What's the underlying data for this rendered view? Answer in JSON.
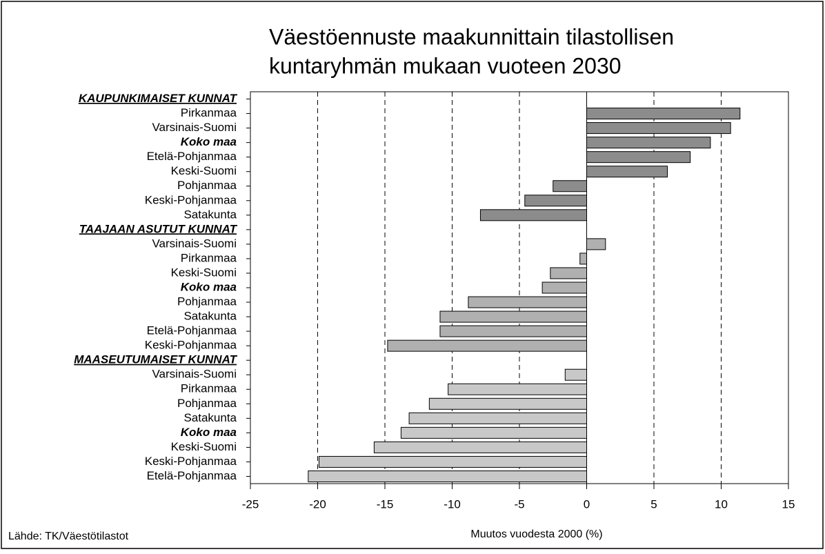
{
  "chart_data": {
    "type": "bar",
    "orientation": "horizontal",
    "title": [
      "Väestöennuste maakunnittain tilastollisen",
      "kuntaryhmän mukaan vuoteen 2030"
    ],
    "x_label": "Muutos vuodesta 2000 (%)",
    "source": "Lähde: TK/Väestötilastot",
    "categories": [
      "KAUPUNKIMAISET KUNNAT",
      "Pirkanmaa",
      "Varsinais-Suomi",
      "Koko maa",
      "Etelä-Pohjanmaa",
      "Keski-Suomi",
      "Pohjanmaa",
      "Keski-Pohjanmaa",
      "Satakunta",
      "TAAJAAN ASUTUT KUNNAT",
      "Varsinais-Suomi",
      "Pirkanmaa",
      "Keski-Suomi",
      "Koko maa",
      "Pohjanmaa",
      "Satakunta",
      "Etelä-Pohjanmaa",
      "Keski-Pohjanmaa",
      "MAASEUTUMAISET KUNNAT",
      "Varsinais-Suomi",
      "Pirkanmaa",
      "Pohjanmaa",
      "Satakunta",
      "Koko maa",
      "Keski-Suomi",
      "Keski-Pohjanmaa",
      "Etelä-Pohjanmaa"
    ],
    "values": [
      null,
      11.4,
      10.7,
      9.2,
      7.7,
      6.0,
      -2.5,
      -4.6,
      -7.9,
      null,
      1.4,
      -0.5,
      -2.7,
      -3.3,
      -8.8,
      -10.9,
      -10.9,
      -14.8,
      null,
      -1.6,
      -10.3,
      -11.7,
      -13.2,
      -13.8,
      -15.8,
      -19.9,
      -20.7
    ],
    "label_styles": [
      "header",
      "normal",
      "normal",
      "bold",
      "normal",
      "normal",
      "normal",
      "normal",
      "normal",
      "header",
      "normal",
      "normal",
      "normal",
      "bold",
      "normal",
      "normal",
      "normal",
      "normal",
      "header",
      "normal",
      "normal",
      "normal",
      "normal",
      "bold",
      "normal",
      "normal",
      "normal"
    ],
    "colors": [
      null,
      "#8c8c8c",
      "#8c8c8c",
      "#8c8c8c",
      "#8c8c8c",
      "#8c8c8c",
      "#8c8c8c",
      "#8c8c8c",
      "#8c8c8c",
      null,
      "#b0b0b0",
      "#b0b0b0",
      "#b0b0b0",
      "#b0b0b0",
      "#b0b0b0",
      "#b0b0b0",
      "#b0b0b0",
      "#b0b0b0",
      null,
      "#c8c8c8",
      "#c8c8c8",
      "#c8c8c8",
      "#c8c8c8",
      "#c8c8c8",
      "#c8c8c8",
      "#c8c8c8",
      "#c8c8c8"
    ],
    "xlim": [
      -25,
      15
    ],
    "xticks": [
      -25,
      -20,
      -15,
      -10,
      -5,
      0,
      5,
      10,
      15
    ],
    "grid": true
  }
}
